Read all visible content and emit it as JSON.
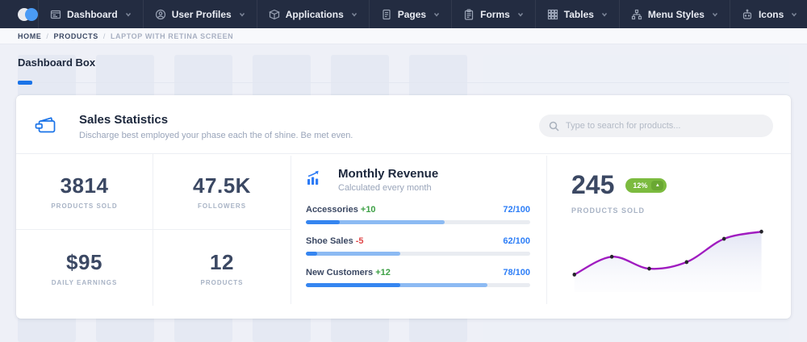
{
  "navbar": {
    "items": [
      {
        "label": "Dashboard"
      },
      {
        "label": "User Profiles"
      },
      {
        "label": "Applications"
      },
      {
        "label": "Pages"
      },
      {
        "label": "Forms"
      },
      {
        "label": "Tables"
      },
      {
        "label": "Menu Styles"
      },
      {
        "label": "Icons"
      }
    ]
  },
  "breadcrumb": {
    "items": [
      "HOME",
      "PRODUCTS",
      "LAPTOP WITH RETINA SCREEN"
    ],
    "separator": "/"
  },
  "page": {
    "title": "Dashboard Box"
  },
  "card": {
    "title": "Sales Statistics",
    "subtitle": "Discharge best employed your phase each the of shine. Be met even.",
    "search_placeholder": "Type to search for products...",
    "stats": [
      {
        "value": "3814",
        "label": "PRODUCTS SOLD"
      },
      {
        "value": "47.5K",
        "label": "FOLLOWERS"
      },
      {
        "value": "$95",
        "label": "DAILY EARNINGS"
      },
      {
        "value": "12",
        "label": "PRODUCTS"
      }
    ],
    "monthly_revenue": {
      "title": "Monthly Revenue",
      "subtitle": "Calculated every month",
      "rows": [
        {
          "label": "Accessories",
          "delta": "+10",
          "trend": "up",
          "score": "72/100",
          "bar_pct": 62,
          "bar_dark_pct": 15
        },
        {
          "label": "Shoe Sales",
          "delta": "-5",
          "trend": "down",
          "score": "62/100",
          "bar_pct": 42,
          "bar_dark_pct": 5
        },
        {
          "label": "New Customers",
          "delta": "+12",
          "trend": "up",
          "score": "78/100",
          "bar_pct": 81,
          "bar_dark_pct": 42
        }
      ]
    },
    "products_sold": {
      "value": "245",
      "badge": "12%",
      "badge_trend": "up",
      "label": "PRODUCTS SOLD"
    }
  },
  "colors": {
    "accent_blue": "#1a73e8",
    "bar_blue": "#3585f0",
    "bar_light_blue": "#8cbaf3",
    "badge_green": "#7cbb3f",
    "delta_green": "#3da045",
    "delta_red": "#e0484a",
    "spark_purple": "#a01cc0",
    "navbar_bg": "#232c41"
  },
  "chart_data": [
    {
      "type": "line",
      "title": "Products sold sparkline (no axes shown)",
      "x": [
        1,
        2,
        3,
        4,
        5,
        6
      ],
      "values": [
        21,
        51,
        31,
        42,
        81,
        93
      ],
      "ylim": [
        0,
        100
      ],
      "line_color": "#a01cc0",
      "point_color": "#26252b",
      "area_fill": "gradient #e2e4f4 to transparent",
      "legend": "none",
      "grid": false
    },
    {
      "type": "bar",
      "title": "Monthly Revenue progress",
      "categories": [
        "Accessories",
        "Shoe Sales",
        "New Customers"
      ],
      "values": [
        72,
        62,
        78
      ],
      "max": 100,
      "deltas": [
        10,
        -5,
        12
      ]
    }
  ]
}
